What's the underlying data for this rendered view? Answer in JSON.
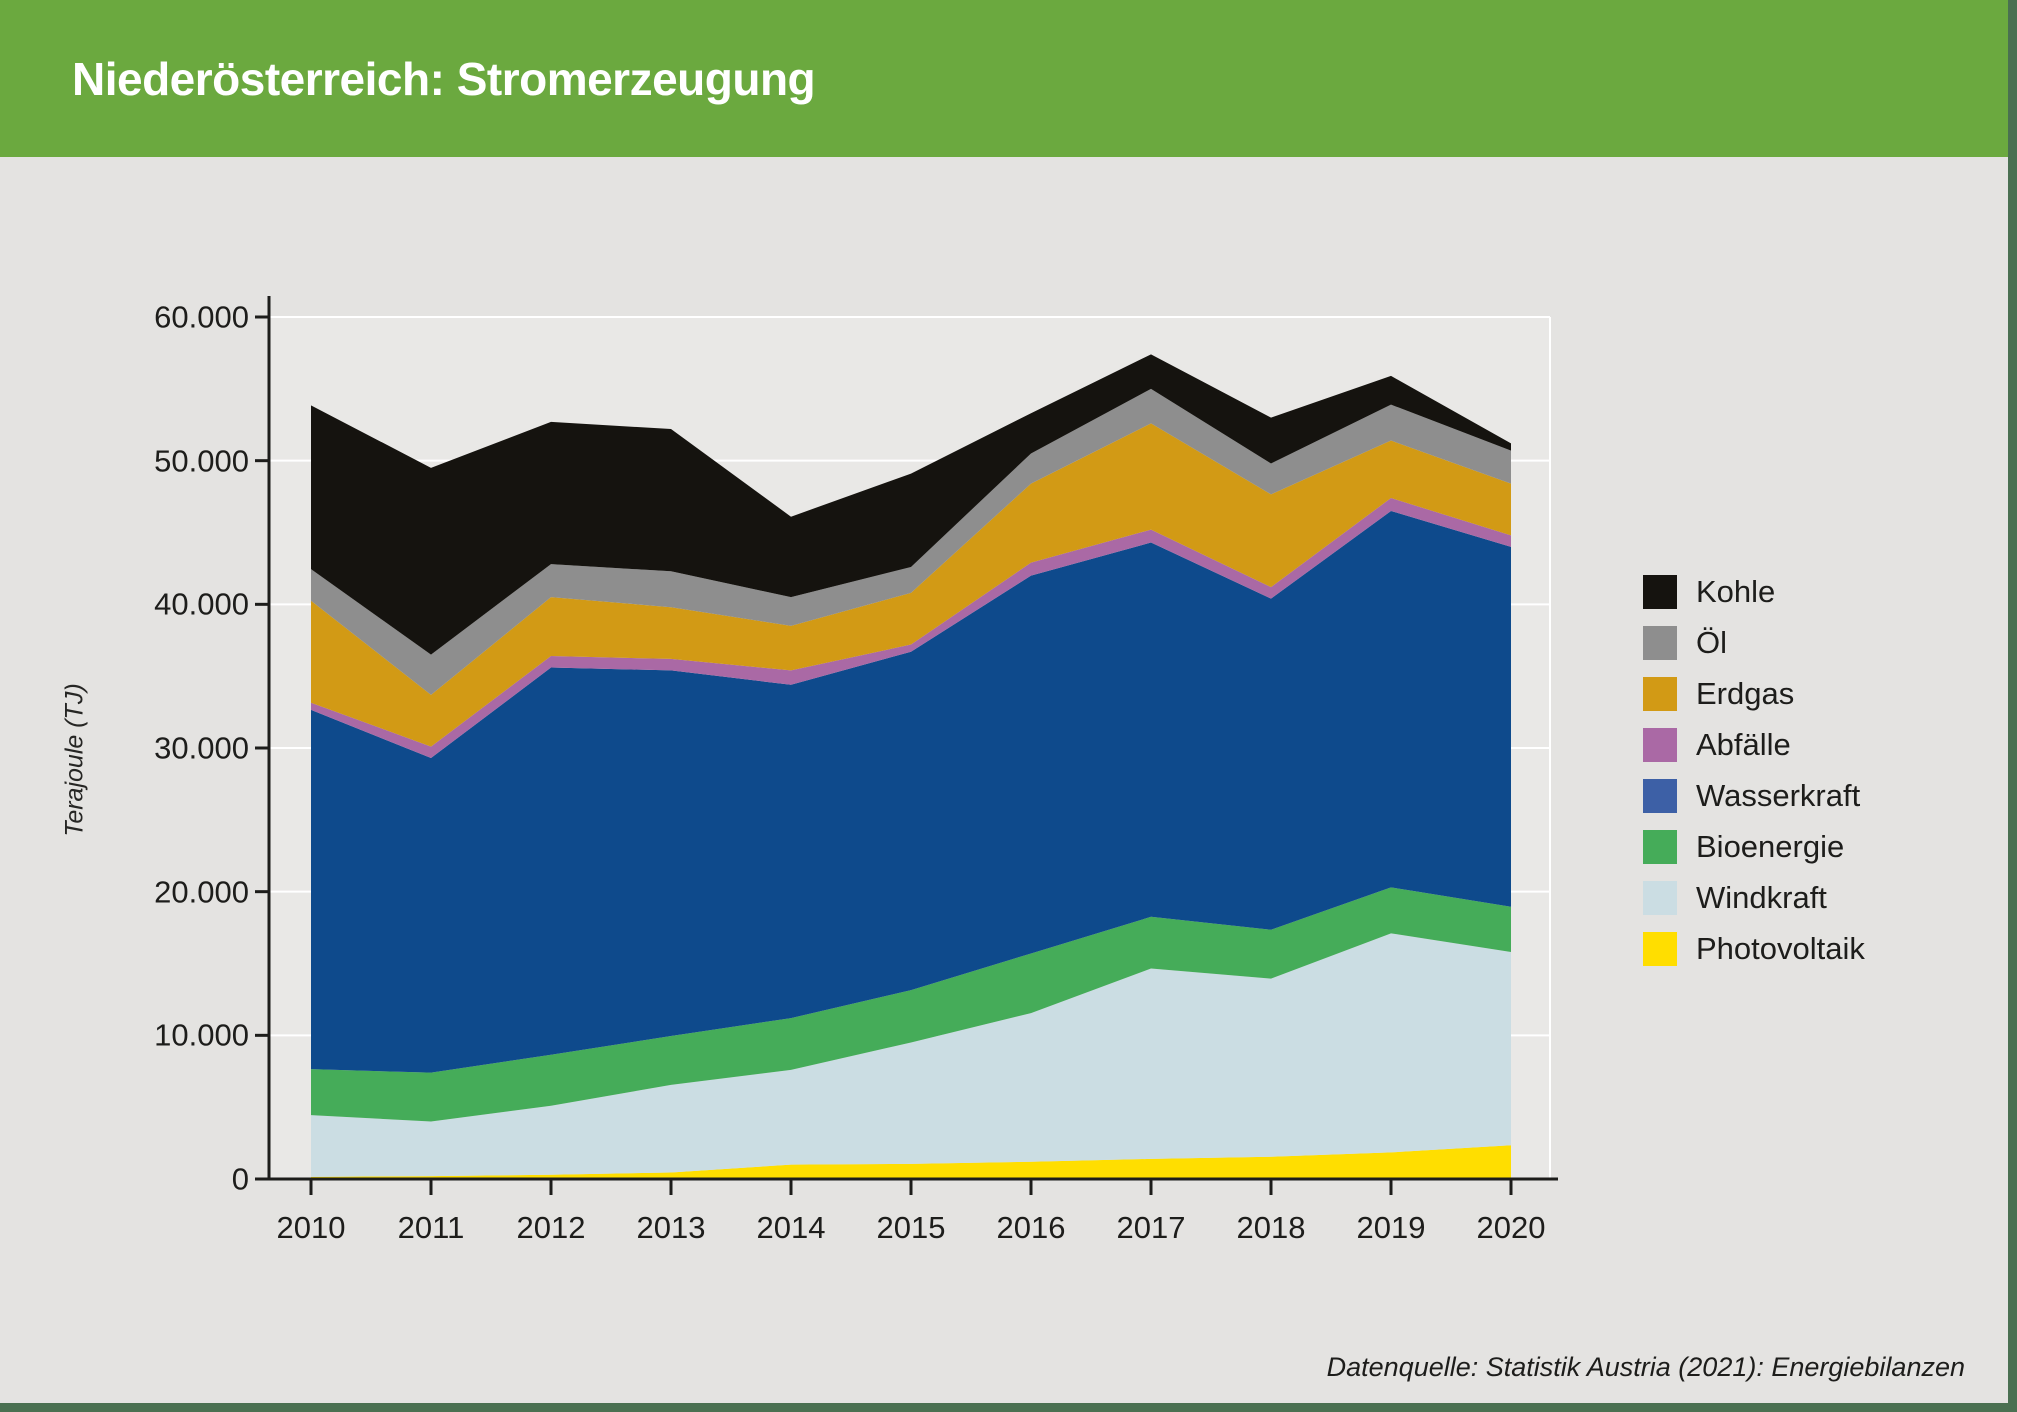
{
  "page": {
    "title": "Niederösterreich: Stromerzeugung",
    "source_note": "Datenquelle: Statistik Austria (2021): Energiebilanzen",
    "colors": {
      "header_bg": "#6BA93F",
      "edge_accent": "#4A7051",
      "page_bg": "#E4E3E1",
      "plot_bg": "#E9E8E6",
      "grid": "#FFFFFF",
      "axis": "#1D1D1B",
      "title_text": "#FFFFFF",
      "body_text": "#1D1D1B"
    }
  },
  "chart_data": {
    "type": "area",
    "stacked": true,
    "title": "Niederösterreich: Stromerzeugung",
    "xlabel": "",
    "ylabel": "Terajoule (TJ)",
    "unit": "TJ",
    "ylim": [
      0,
      60000
    ],
    "grid": "horizontal, white on light gray",
    "legend_position": "right",
    "categories": [
      "2010",
      "2011",
      "2012",
      "2013",
      "2014",
      "2015",
      "2016",
      "2017",
      "2018",
      "2019",
      "2020"
    ],
    "y_ticks": [
      {
        "value": 0,
        "label": "0"
      },
      {
        "value": 10000,
        "label": "10.000"
      },
      {
        "value": 20000,
        "label": "20.000"
      },
      {
        "value": 30000,
        "label": "30.000"
      },
      {
        "value": 40000,
        "label": "40.000"
      },
      {
        "value": 50000,
        "label": "50.000"
      },
      {
        "value": 60000,
        "label": "60.000"
      }
    ],
    "stack_order_note": "series listed bottom-to-top as stacked in the plot; legend shows reverse (top-to-bottom)",
    "series": [
      {
        "name": "Photovoltaik",
        "color": "#FFDE00",
        "legend_color": "#FFDE00",
        "values": [
          150,
          200,
          300,
          450,
          1000,
          1050,
          1200,
          1400,
          1550,
          1850,
          2350
        ]
      },
      {
        "name": "Windkraft",
        "color": "#CBDDE3",
        "legend_color": "#CBDDE3",
        "values": [
          4300,
          3800,
          4800,
          6100,
          6600,
          8450,
          10350,
          13250,
          12400,
          15250,
          13450
        ]
      },
      {
        "name": "Bioenergie",
        "color": "#45AC59",
        "legend_color": "#45AC59",
        "values": [
          3200,
          3400,
          3550,
          3400,
          3600,
          3650,
          4150,
          3600,
          3400,
          3200,
          3150
        ]
      },
      {
        "name": "Wasserkraft",
        "color": "#0E4A8C",
        "legend_color": "#3D60A6",
        "values": [
          25000,
          21900,
          26950,
          25450,
          23200,
          23550,
          26300,
          26050,
          23050,
          26200,
          25050
        ]
      },
      {
        "name": "Abfälle",
        "color": "#AA69A5",
        "legend_color": "#AA69A5",
        "values": [
          500,
          800,
          800,
          800,
          1000,
          500,
          900,
          900,
          800,
          900,
          800
        ]
      },
      {
        "name": "Erdgas",
        "color": "#D29A15",
        "legend_color": "#D29A15",
        "values": [
          7100,
          3600,
          4100,
          3600,
          3100,
          3600,
          5500,
          7400,
          6450,
          4000,
          3600
        ]
      },
      {
        "name": "Öl",
        "color": "#8E8E8E",
        "legend_color": "#8E8E8E",
        "values": [
          2200,
          2800,
          2300,
          2500,
          2000,
          1800,
          2100,
          2400,
          2150,
          2500,
          2300
        ]
      },
      {
        "name": "Kohle",
        "color": "#15130F",
        "legend_color": "#15130F",
        "values": [
          11400,
          13000,
          9900,
          9900,
          5600,
          6500,
          2800,
          2400,
          3200,
          2000,
          500
        ]
      }
    ],
    "totals": [
      53850,
      49500,
      52700,
      52200,
      46100,
      49100,
      53300,
      57400,
      53000,
      55900,
      51200
    ]
  }
}
